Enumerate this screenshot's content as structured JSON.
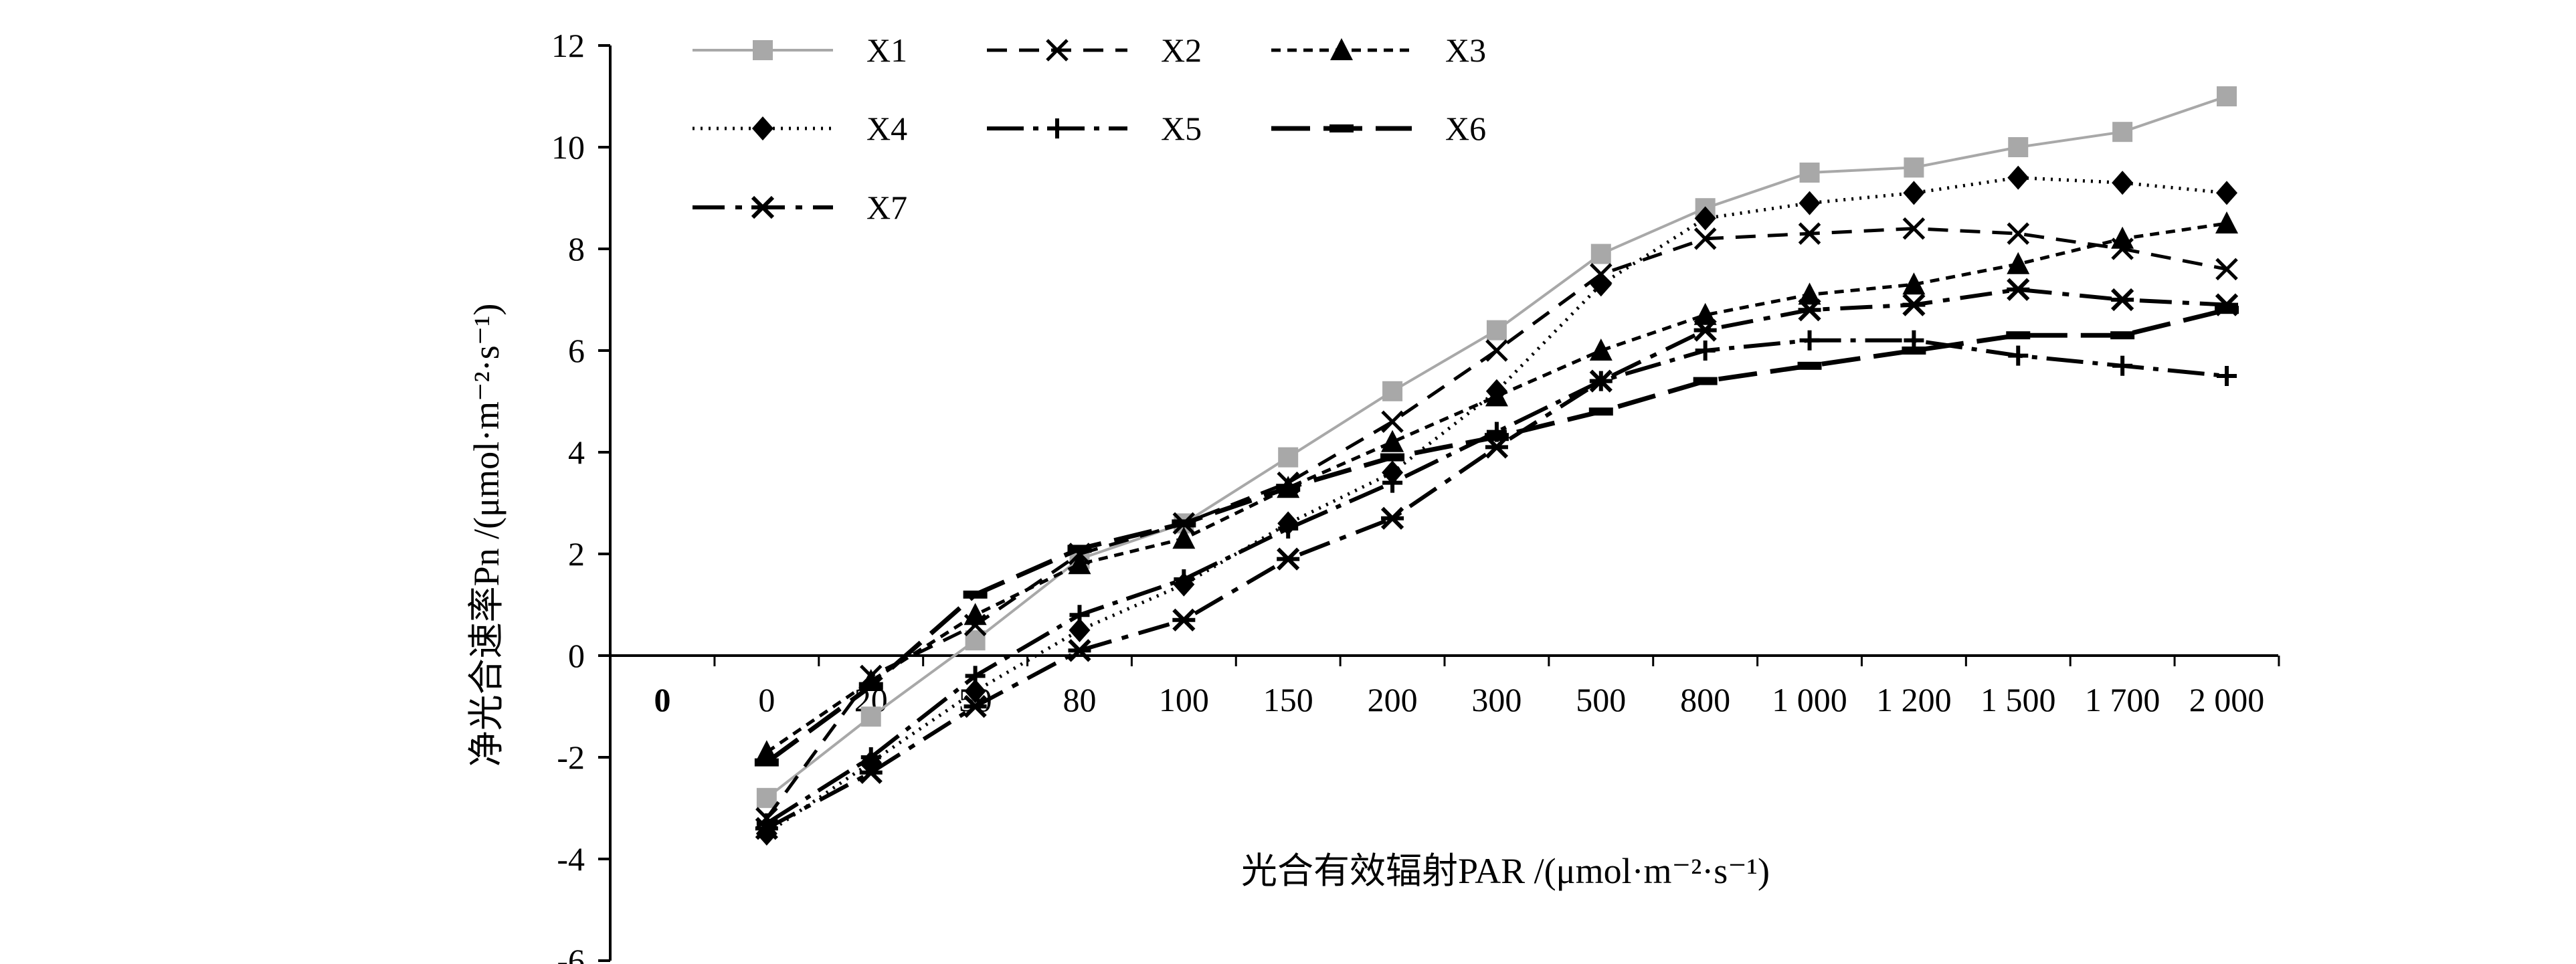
{
  "chart_data": {
    "type": "line",
    "title": "",
    "xlabel": "光合有效辐射PAR /(μmol·m⁻²·s⁻¹)",
    "ylabel": "净光合速率Pn /(μmol·m⁻²·s⁻¹)",
    "ylim": [
      -6,
      12
    ],
    "yticks": [
      "12",
      "10",
      "8",
      "6",
      "4",
      "2",
      "0",
      "-2",
      "-4",
      "-6"
    ],
    "x_origin_label": "0",
    "categories": [
      "0",
      "20",
      "50",
      "80",
      "100",
      "150",
      "200",
      "300",
      "500",
      "800",
      "1 000",
      "1 200",
      "1 500",
      "1 700",
      "2 000"
    ],
    "x": [
      0,
      20,
      50,
      80,
      100,
      150,
      200,
      300,
      500,
      800,
      1000,
      1200,
      1500,
      1700,
      2000
    ],
    "legend_position": "top-left",
    "grid": false,
    "series": [
      {
        "name": "X1",
        "values": [
          -2.8,
          -1.2,
          0.3,
          1.9,
          2.6,
          3.9,
          5.2,
          6.4,
          7.9,
          8.8,
          9.5,
          9.6,
          10.0,
          10.3,
          11.0
        ]
      },
      {
        "name": "X2",
        "values": [
          -3.2,
          -0.4,
          0.6,
          2.0,
          2.6,
          3.4,
          4.6,
          6.0,
          7.5,
          8.2,
          8.3,
          8.4,
          8.3,
          8.0,
          7.6
        ]
      },
      {
        "name": "X3",
        "values": [
          -1.9,
          -0.5,
          0.8,
          1.8,
          2.3,
          3.3,
          4.2,
          5.1,
          6.0,
          6.7,
          7.1,
          7.3,
          7.7,
          8.2,
          8.5
        ]
      },
      {
        "name": "X4",
        "values": [
          -3.5,
          -2.1,
          -0.7,
          0.5,
          1.4,
          2.6,
          3.6,
          5.2,
          7.3,
          8.6,
          8.9,
          9.1,
          9.4,
          9.3,
          9.1
        ]
      },
      {
        "name": "X5",
        "values": [
          -3.3,
          -2.0,
          -0.4,
          0.8,
          1.5,
          2.5,
          3.4,
          4.4,
          5.4,
          6.0,
          6.2,
          6.2,
          5.9,
          5.7,
          5.5
        ]
      },
      {
        "name": "X6",
        "values": [
          -2.1,
          -0.6,
          1.2,
          2.1,
          2.6,
          3.3,
          3.9,
          4.3,
          4.8,
          5.4,
          5.7,
          6.0,
          6.3,
          6.3,
          6.8
        ]
      },
      {
        "name": "X7",
        "values": [
          -3.4,
          -2.3,
          -1.0,
          0.1,
          0.7,
          1.9,
          2.7,
          4.1,
          5.4,
          6.4,
          6.8,
          6.9,
          7.2,
          7.0,
          6.9
        ]
      }
    ]
  }
}
